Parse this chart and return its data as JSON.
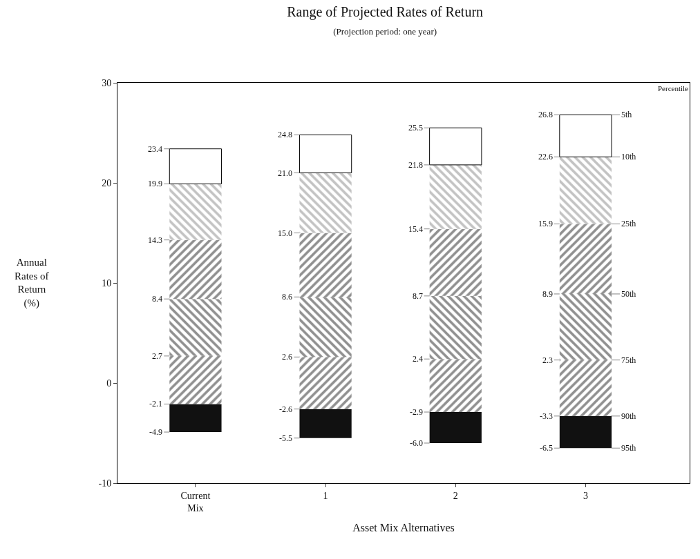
{
  "chart_data": {
    "type": "bar",
    "title": "Range of Projected Rates of Return",
    "subtitle": "(Projection period: one year)",
    "xlabel": "Asset Mix Alternatives",
    "ylabel": "Annual\nRates of\nReturn\n(%)",
    "categories": [
      "Current\nMix",
      "1",
      "2",
      "3"
    ],
    "series": [
      {
        "color": "#111111",
        "base": [
          -4.9,
          -5.5,
          -6.0,
          -6.5
        ],
        "values": [
          2.8,
          2.9,
          3.1,
          3.2
        ]
      },
      {
        "color": "#222222",
        "base": [
          -2.1,
          -2.6,
          -2.9,
          -3.3
        ],
        "values": [
          4.8,
          5.2,
          5.3,
          5.6
        ]
      },
      {
        "color": "#222222",
        "base": [
          2.7,
          2.6,
          2.4,
          2.3
        ],
        "values": [
          5.7,
          6.0,
          6.3,
          6.6
        ]
      },
      {
        "color": "#222222",
        "base": [
          8.4,
          8.6,
          8.7,
          8.9
        ],
        "values": [
          5.9,
          6.4,
          6.7,
          7.0
        ]
      },
      {
        "color": "#888888",
        "base": [
          14.3,
          15.0,
          15.4,
          15.9
        ],
        "values": [
          5.6,
          6.0,
          6.4,
          6.7
        ]
      },
      {
        "color": "#ffffff",
        "base": [
          19.9,
          21.0,
          21.8,
          22.6
        ],
        "values": [
          3.5,
          3.8,
          3.7,
          4.2
        ]
      }
    ],
    "ylim": [
      -10,
      30
    ],
    "yticks": [
      -10,
      0,
      10,
      20,
      30
    ],
    "annotations": [
      {
        "text": "-4.9",
        "x": "Current\nMix",
        "y": -4.9
      },
      {
        "text": "-2.1",
        "x": "Current\nMix",
        "y": -2.1
      },
      {
        "text": "2.7",
        "x": "Current\nMix",
        "y": 2.7
      },
      {
        "text": "8.4",
        "x": "Current\nMix",
        "y": 8.4
      },
      {
        "text": "14.3",
        "x": "Current\nMix",
        "y": 14.3
      },
      {
        "text": "19.9",
        "x": "Current\nMix",
        "y": 19.9
      },
      {
        "text": "23.4",
        "x": "Current\nMix",
        "y": 23.4
      },
      {
        "text": "-5.5",
        "x": "1",
        "y": -5.5
      },
      {
        "text": "-2.6",
        "x": "1",
        "y": -2.6
      },
      {
        "text": "2.6",
        "x": "1",
        "y": 2.6
      },
      {
        "text": "8.6",
        "x": "1",
        "y": 8.6
      },
      {
        "text": "15.0",
        "x": "1",
        "y": 15.0
      },
      {
        "text": "21.0",
        "x": "1",
        "y": 21.0
      },
      {
        "text": "24.8",
        "x": "1",
        "y": 24.8
      },
      {
        "text": "-6.0",
        "x": "2",
        "y": -6.0
      },
      {
        "text": "-2.9",
        "x": "2",
        "y": -2.9
      },
      {
        "text": "2.4",
        "x": "2",
        "y": 2.4
      },
      {
        "text": "8.7",
        "x": "2",
        "y": 8.7
      },
      {
        "text": "15.4",
        "x": "2",
        "y": 15.4
      },
      {
        "text": "21.8",
        "x": "2",
        "y": 21.8
      },
      {
        "text": "25.5",
        "x": "2",
        "y": 25.5
      },
      {
        "text": "-6.5",
        "x": "3",
        "y": -6.5
      },
      {
        "text": "-3.3",
        "x": "3",
        "y": -3.3
      },
      {
        "text": "2.3",
        "x": "3",
        "y": 2.3
      },
      {
        "text": "8.9",
        "x": "3",
        "y": 8.9
      },
      {
        "text": "15.9",
        "x": "3",
        "y": 15.9
      },
      {
        "text": "22.6",
        "x": "3",
        "y": 22.6
      },
      {
        "text": "26.8",
        "x": "3",
        "y": 26.8
      },
      "Percentile",
      {
        "text": "5th",
        "x": "3",
        "y": 26.8
      },
      {
        "text": "10th",
        "x": "3",
        "y": 22.6
      },
      {
        "text": "25th",
        "x": "3",
        "y": 15.9
      },
      {
        "text": "50th",
        "x": "3",
        "y": 8.9
      },
      {
        "text": "75th",
        "x": "3",
        "y": 2.3
      },
      {
        "text": "90th",
        "x": "3",
        "y": -3.3
      },
      {
        "text": "95th",
        "x": "3",
        "y": -6.5
      }
    ]
  }
}
